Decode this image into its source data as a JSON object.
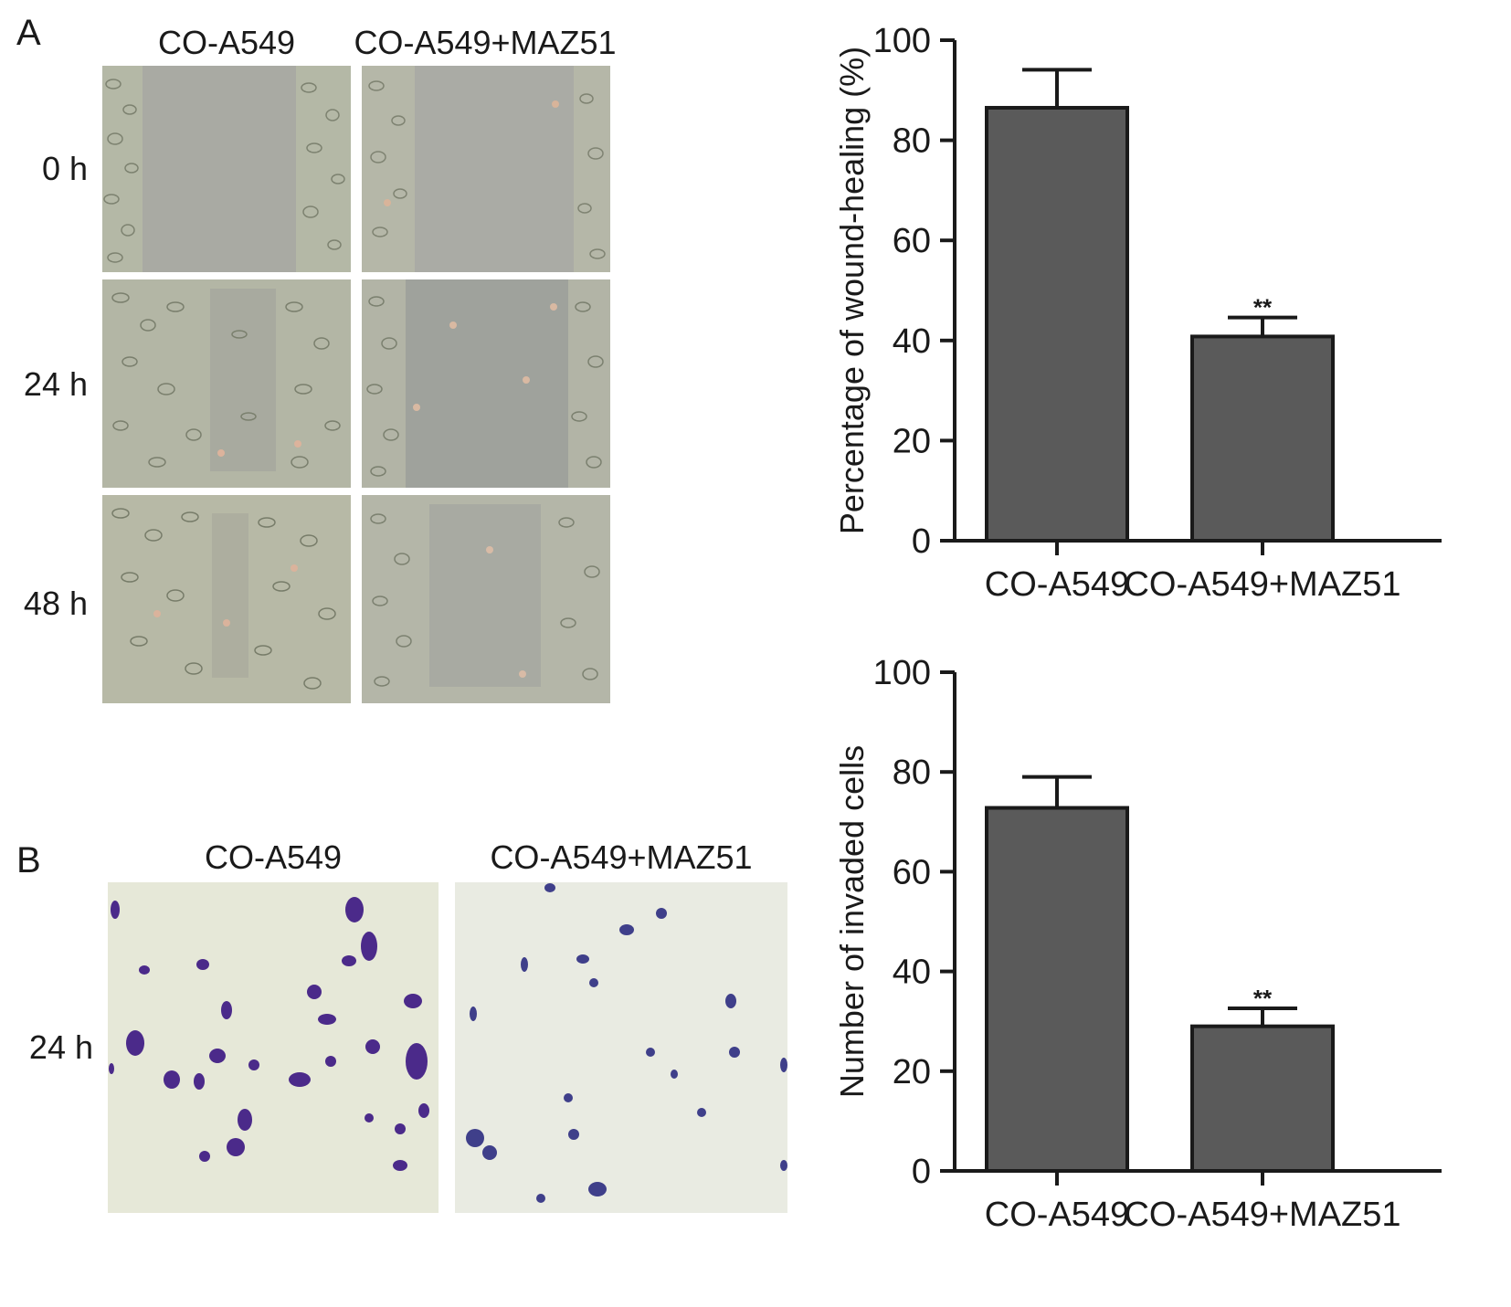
{
  "panel_a": {
    "letter": "A",
    "columns": [
      "CO-A549",
      "CO-A549+MAZ51"
    ],
    "rows": [
      "0 h",
      "24 h",
      "48 h"
    ]
  },
  "panel_b": {
    "letter": "B",
    "columns": [
      "CO-A549",
      "CO-A549+MAZ51"
    ],
    "rows": [
      "24 h"
    ]
  },
  "colors": {
    "bar_fill": "#5a5a5a",
    "axis": "#1a1a1a",
    "wound_background": "#a9aaa3",
    "cell_monolayer": "#b4b8a6",
    "transwell_background": "#e6e8d8",
    "crystal_violet": "#4b2a8a"
  },
  "chart_data": [
    {
      "type": "bar",
      "categories": [
        "CO-A549",
        "CO-A549+MAZ51"
      ],
      "values": [
        86.5,
        40.8
      ],
      "error": [
        7.6,
        3.8
      ],
      "annotations": [
        "",
        "**"
      ],
      "ylabel": "Percentage of wound-healing (%)",
      "xlabel": "",
      "ylim": [
        0,
        100
      ],
      "yticks": [
        0,
        20,
        40,
        60,
        80,
        100
      ],
      "grid": false
    },
    {
      "type": "bar",
      "categories": [
        "CO-A549",
        "CO-A549+MAZ51"
      ],
      "values": [
        72.8,
        29.0
      ],
      "error": [
        6.2,
        3.6
      ],
      "annotations": [
        "",
        "**"
      ],
      "ylabel": "Number of invaded cells",
      "xlabel": "",
      "ylim": [
        0,
        100
      ],
      "yticks": [
        0,
        20,
        40,
        60,
        80,
        100
      ],
      "grid": false
    }
  ]
}
